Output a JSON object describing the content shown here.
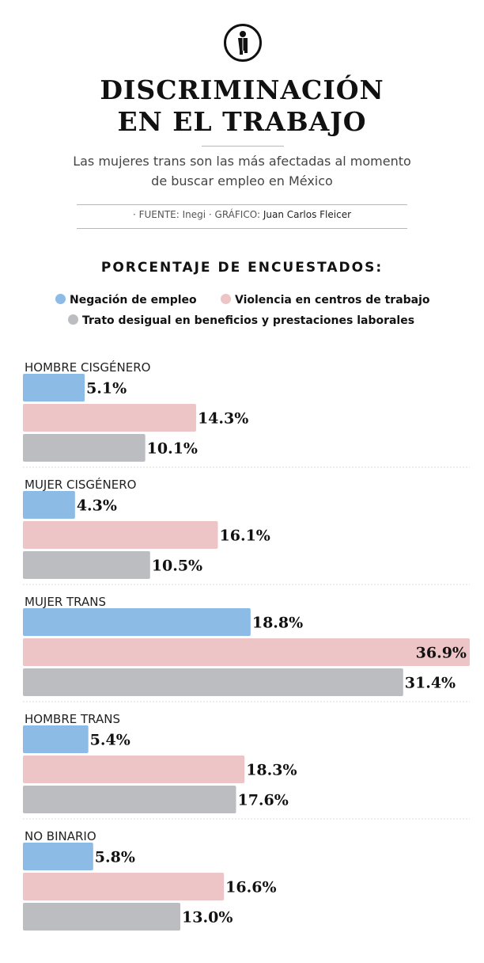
{
  "header": {
    "icon": "transgender-person-icon",
    "title_line1": "DISCRIMINACIÓN",
    "title_line2": "EN EL TRABAJO",
    "subtitle_line1": "Las mujeres trans son las más afectadas al momento",
    "subtitle_line2": "de buscar empleo en México",
    "source_prefix": "· FUENTE: Inegi · GRÁFICO:",
    "source_author": "Juan Carlos Fleicer"
  },
  "chart_data": {
    "type": "bar",
    "orientation": "horizontal",
    "title": "PORCENTAJE DE ENCUESTADOS:",
    "categories": [
      "HOMBRE CISGÉNERO",
      "MUJER CISGÉNERO",
      "MUJER TRANS",
      "HOMBRE TRANS",
      "NO BINARIO"
    ],
    "series": [
      {
        "name": "Negación de empleo",
        "color": "#8cbbe6",
        "values": [
          5.1,
          4.3,
          18.8,
          5.4,
          5.8
        ],
        "labels": [
          "5.1%",
          "4.3%",
          "18.8%",
          "5.4%",
          "5.8%"
        ]
      },
      {
        "name": "Violencia en centros de trabajo",
        "color": "#edc5c6",
        "values": [
          14.3,
          16.1,
          36.9,
          18.3,
          16.6
        ],
        "labels": [
          "14.3%",
          "16.1%",
          "36.9%",
          "18.3%",
          "16.6%"
        ]
      },
      {
        "name": "Trato desigual en beneficios y prestaciones laborales",
        "color": "#bcbdc1",
        "values": [
          10.1,
          10.5,
          31.4,
          17.6,
          13.0
        ],
        "labels": [
          "10.1%",
          "10.5%",
          "31.4%",
          "17.6%",
          "13.0%"
        ]
      }
    ],
    "xlim": [
      0,
      36.9
    ],
    "legend": "top-center",
    "grid": false
  }
}
